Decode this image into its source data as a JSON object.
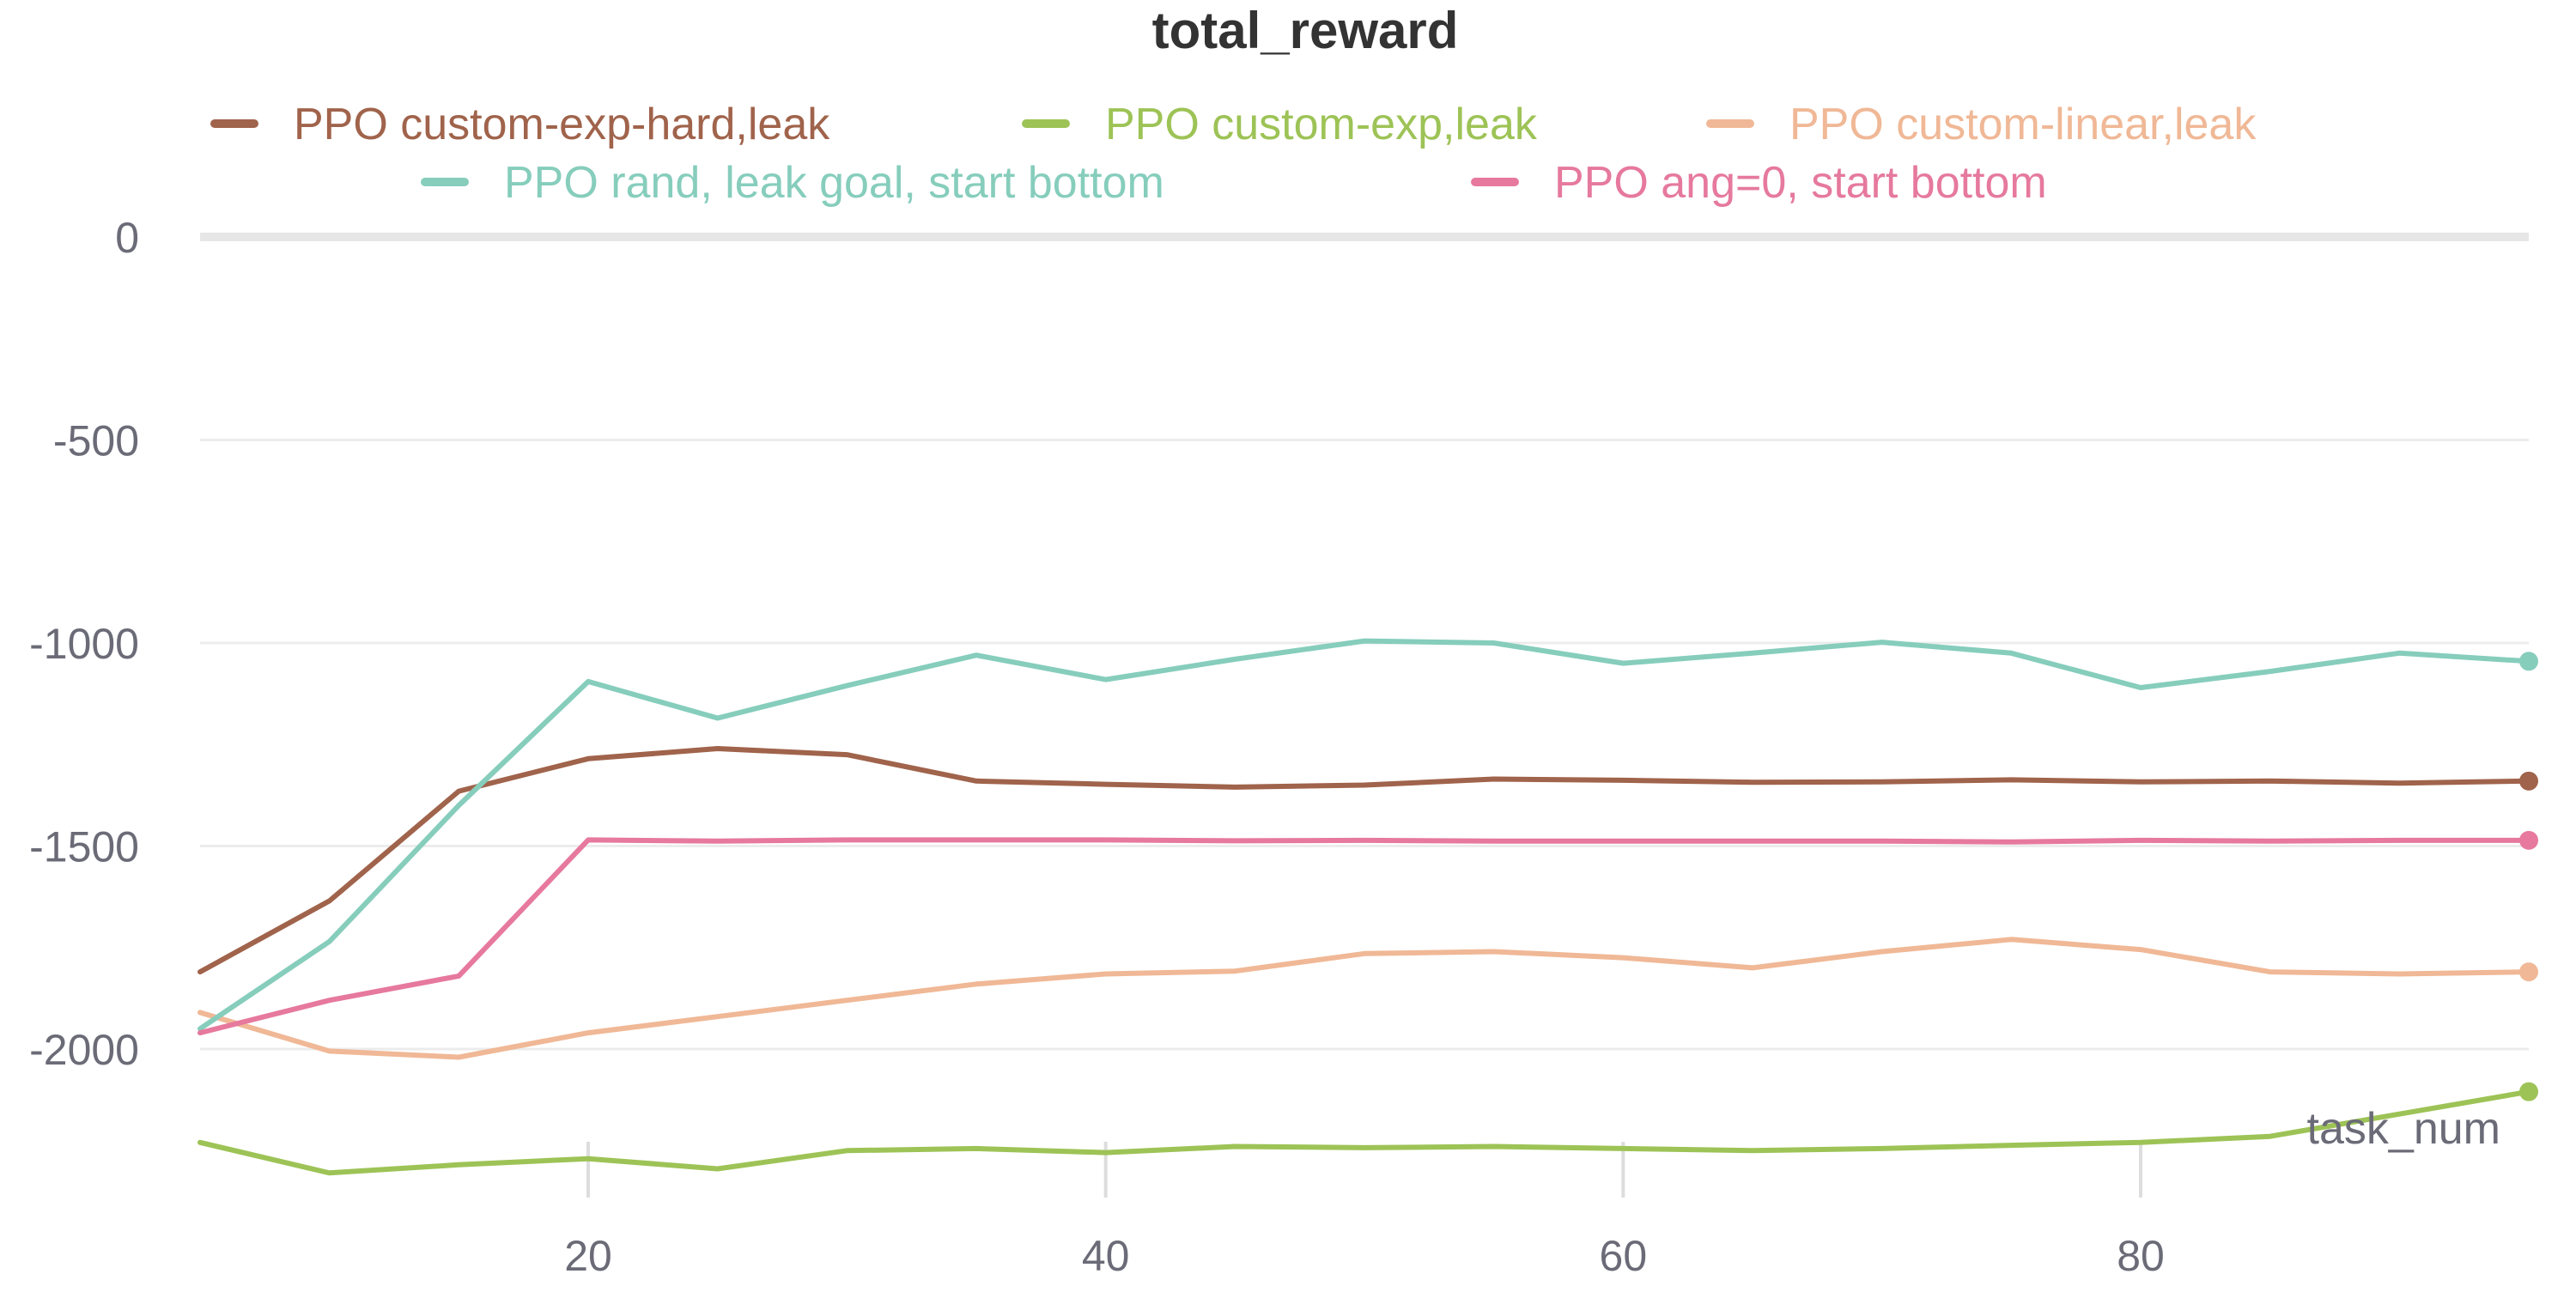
{
  "chart_data": {
    "type": "line",
    "title": "total_reward",
    "xlabel": "task_num",
    "ylabel": "",
    "xlim": [
      5,
      95
    ],
    "ylim": [
      -2320,
      10
    ],
    "x_ticks": [
      20,
      40,
      60,
      80
    ],
    "y_ticks": [
      0,
      -500,
      -1000,
      -1500,
      -2000
    ],
    "grid": true,
    "legend_position": "top",
    "x": [
      5,
      10,
      15,
      20,
      25,
      30,
      35,
      40,
      45,
      50,
      55,
      60,
      65,
      70,
      75,
      80,
      85,
      90,
      95
    ],
    "series": [
      {
        "name": "PPO custom-exp-hard,leak",
        "color": "#a0634b",
        "values": [
          -1810,
          -1635,
          -1365,
          -1285,
          -1260,
          -1275,
          -1340,
          -1348,
          -1355,
          -1350,
          -1335,
          -1338,
          -1343,
          -1342,
          -1337,
          -1342,
          -1340,
          -1345,
          -1340
        ]
      },
      {
        "name": "PPO custom-exp,leak",
        "color": "#9dc356",
        "values": [
          -2230,
          -2305,
          -2285,
          -2270,
          -2295,
          -2250,
          -2245,
          -2255,
          -2240,
          -2243,
          -2240,
          -2245,
          -2250,
          -2245,
          -2237,
          -2230,
          -2215,
          -2160,
          -2105
        ]
      },
      {
        "name": "PPO custom-linear,leak",
        "color": "#f0b896",
        "values": [
          -1910,
          -2005,
          -2020,
          -1960,
          -1920,
          -1880,
          -1840,
          -1815,
          -1808,
          -1765,
          -1760,
          -1775,
          -1800,
          -1760,
          -1730,
          -1755,
          -1810,
          -1815,
          -1810
        ]
      },
      {
        "name": "PPO rand, leak goal, start bottom",
        "color": "#86cdbc",
        "values": [
          -1950,
          -1735,
          -1400,
          -1095,
          -1185,
          -1105,
          -1030,
          -1090,
          -1040,
          -995,
          -1000,
          -1050,
          -1025,
          -998,
          -1025,
          -1110,
          -1070,
          -1025,
          -1045
        ]
      },
      {
        "name": "PPO ang=0, start bottom",
        "color": "#e6799d",
        "values": [
          -1960,
          -1880,
          -1820,
          -1485,
          -1488,
          -1485,
          -1485,
          -1485,
          -1487,
          -1486,
          -1488,
          -1488,
          -1488,
          -1488,
          -1490,
          -1486,
          -1488,
          -1486,
          -1486
        ]
      }
    ]
  }
}
